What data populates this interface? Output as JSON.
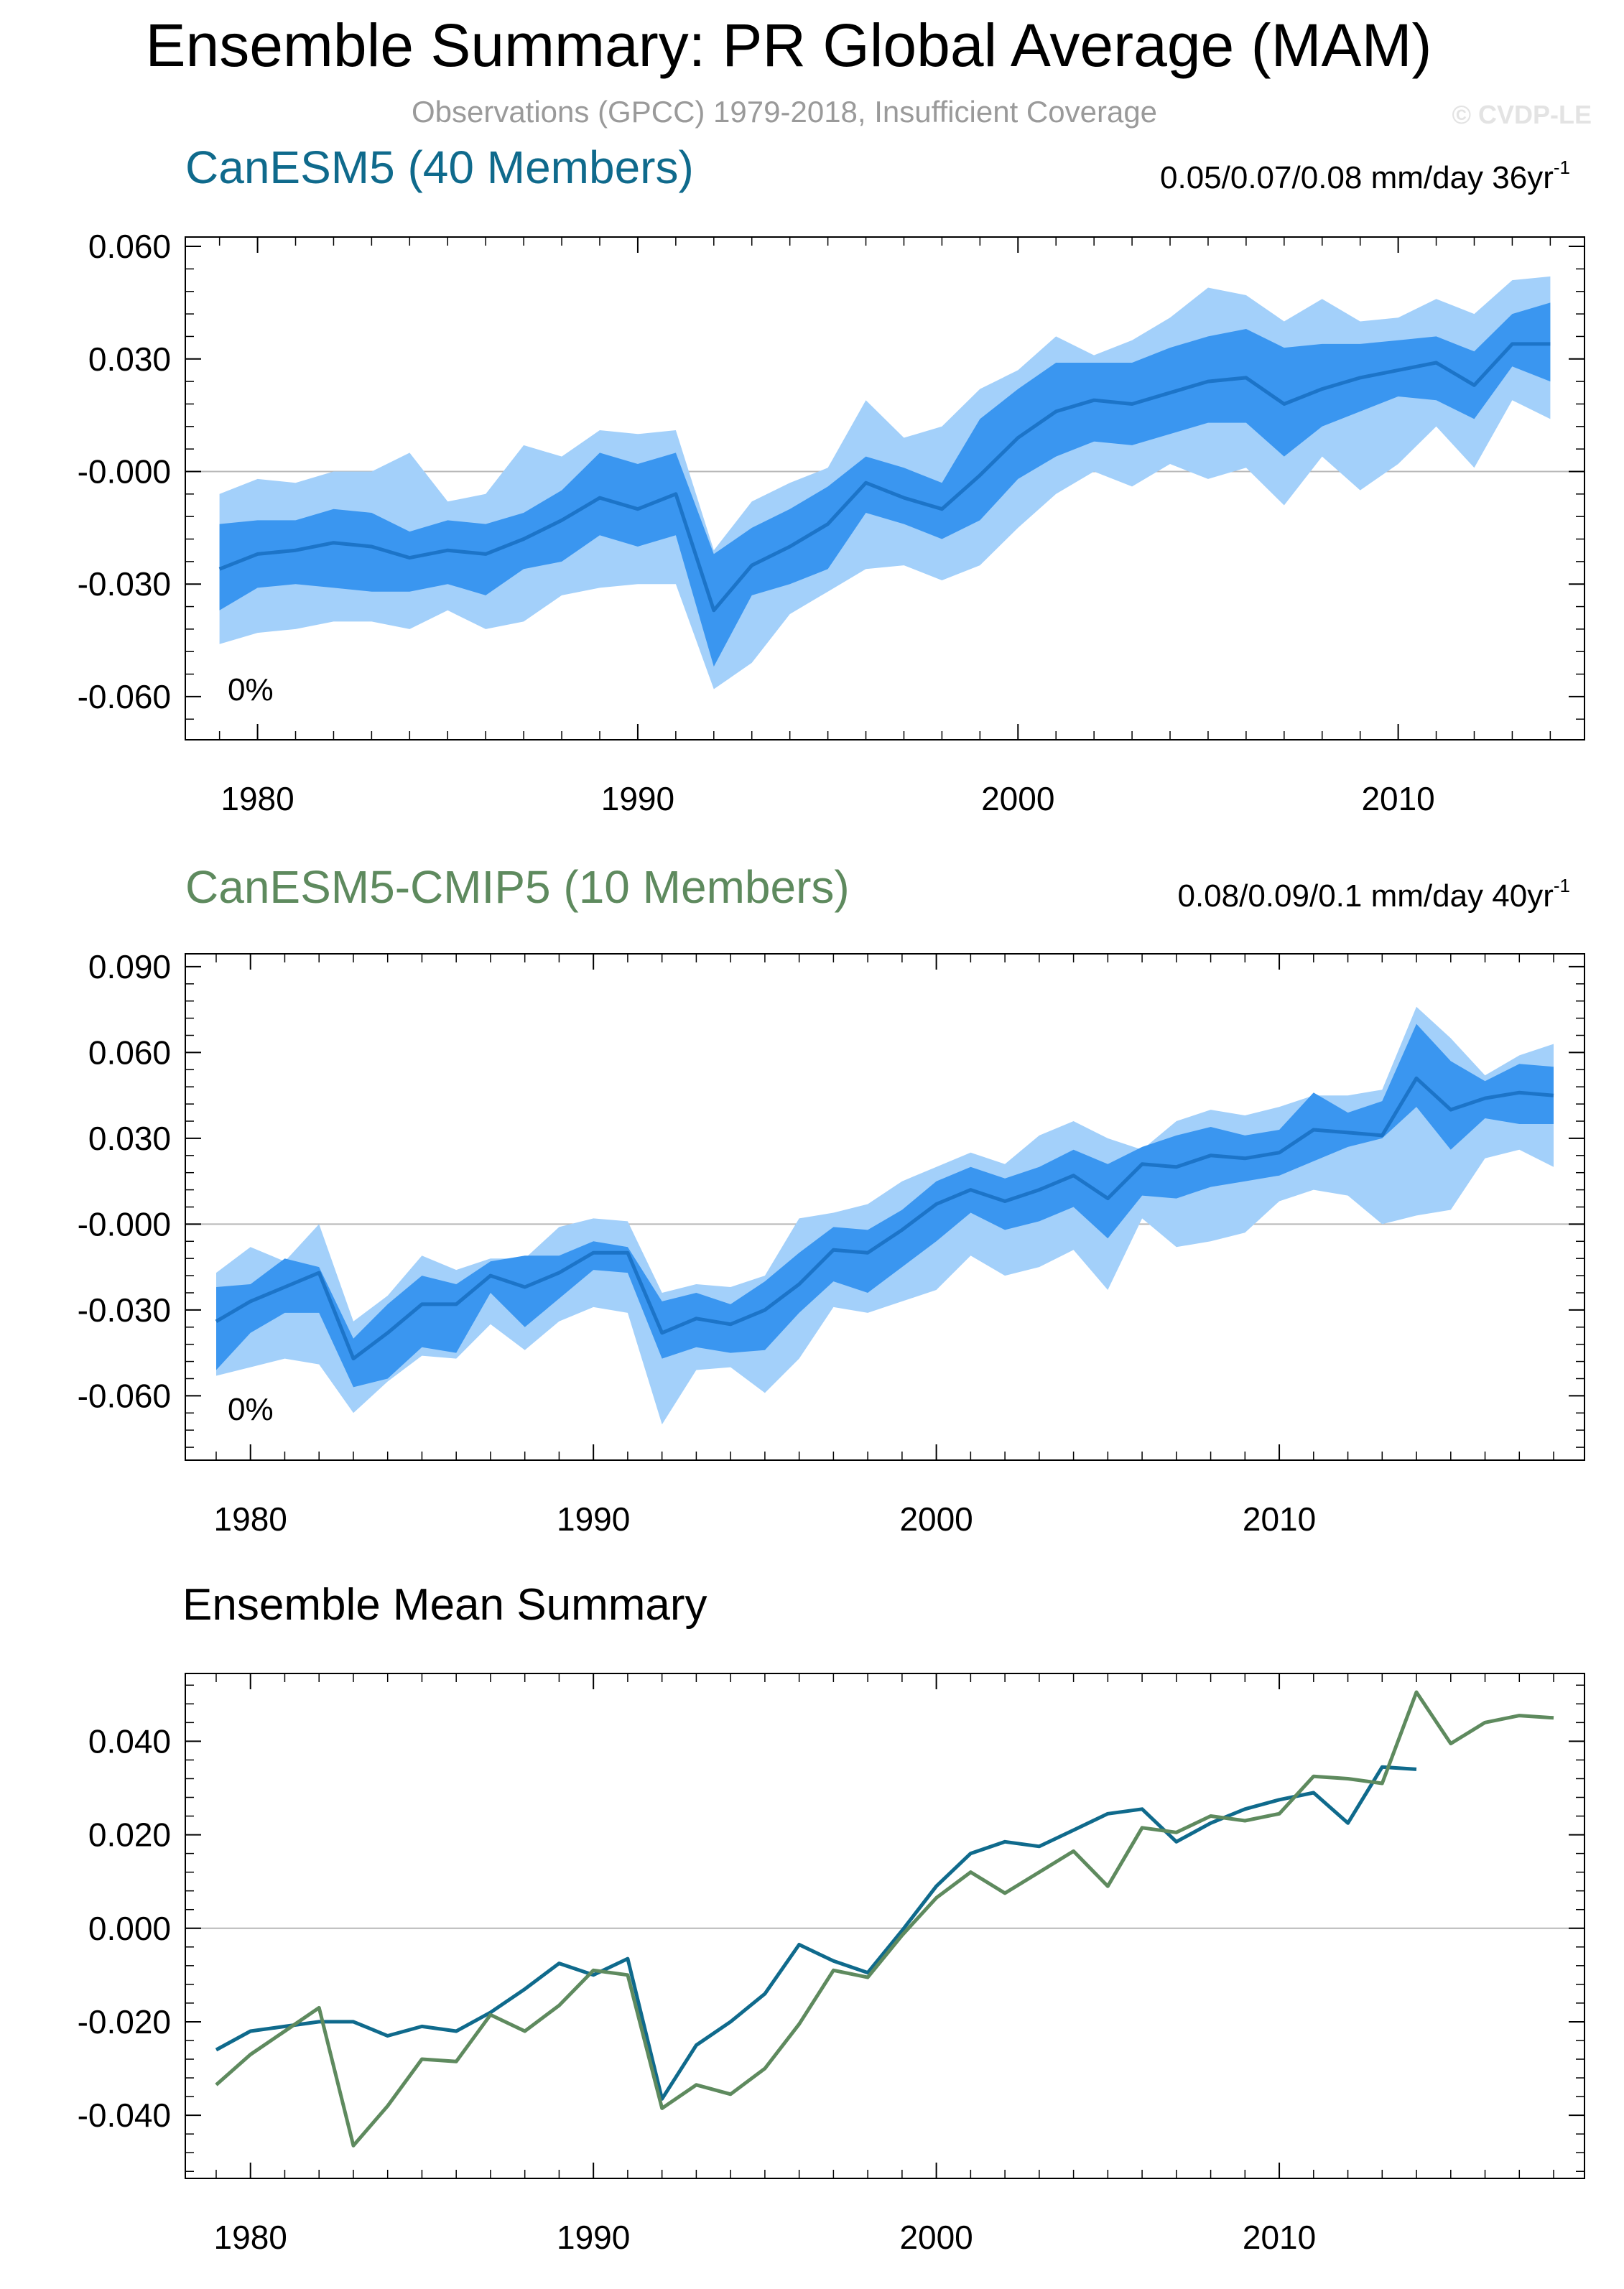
{
  "header": {
    "title": "Ensemble Summary: PR Global Average (MAM)",
    "subtitle": "Observations (GPCC) 1979-2018, Insufficient Coverage",
    "watermark": "© CVDP-LE"
  },
  "colors": {
    "canesm5": "#0f6a8c",
    "cmip5": "#5e8a5e",
    "band_outer": "#a3d0fa",
    "band_inner": "#3a96f0",
    "mean_line": "#1c74c8",
    "zero_line": "#b8b8b8"
  },
  "chart_data": [
    {
      "type": "area",
      "title": "CanESM5 (40 Members)",
      "trend_label": "0.05/0.07/0.08 mm/day 36yr",
      "trend_exp": "-1",
      "percent_label": "0%",
      "xlim": [
        1978.1,
        2014.9
      ],
      "ylim": [
        -0.0715,
        0.0625
      ],
      "yticks": [
        0.06,
        0.03,
        0.0,
        -0.03,
        -0.06
      ],
      "yticklabels": [
        "0.060",
        "0.030",
        "-0.000",
        "-0.030",
        "-0.060"
      ],
      "xticks": [
        1980,
        1990,
        2000,
        2010
      ],
      "xticklabels": [
        "1980",
        "1990",
        "2000",
        "2010"
      ],
      "x": [
        1979,
        1980,
        1981,
        1982,
        1983,
        1984,
        1985,
        1986,
        1987,
        1988,
        1989,
        1990,
        1991,
        1992,
        1993,
        1994,
        1995,
        1996,
        1997,
        1998,
        1999,
        2000,
        2001,
        2002,
        2003,
        2004,
        2005,
        2006,
        2007,
        2008,
        2009,
        2010,
        2011,
        2012,
        2013,
        2014
      ],
      "mean": [
        -0.026,
        -0.022,
        -0.021,
        -0.019,
        -0.02,
        -0.023,
        -0.021,
        -0.022,
        -0.018,
        -0.013,
        -0.007,
        -0.01,
        -0.006,
        -0.037,
        -0.025,
        -0.02,
        -0.014,
        -0.003,
        -0.007,
        -0.01,
        -0.001,
        0.009,
        0.016,
        0.019,
        0.018,
        0.021,
        0.024,
        0.025,
        0.018,
        0.022,
        0.025,
        0.027,
        0.029,
        0.023,
        0.034,
        0.034
      ],
      "inner_upper": [
        -0.014,
        -0.013,
        -0.013,
        -0.01,
        -0.011,
        -0.016,
        -0.013,
        -0.014,
        -0.011,
        -0.005,
        0.005,
        0.002,
        0.005,
        -0.022,
        -0.015,
        -0.01,
        -0.004,
        0.004,
        0.001,
        -0.003,
        0.014,
        0.022,
        0.029,
        0.029,
        0.029,
        0.033,
        0.036,
        0.038,
        0.033,
        0.034,
        0.034,
        0.035,
        0.036,
        0.032,
        0.042,
        0.045
      ],
      "inner_lower": [
        -0.037,
        -0.031,
        -0.03,
        -0.031,
        -0.032,
        -0.032,
        -0.03,
        -0.033,
        -0.026,
        -0.024,
        -0.017,
        -0.02,
        -0.017,
        -0.052,
        -0.033,
        -0.03,
        -0.026,
        -0.011,
        -0.014,
        -0.018,
        -0.013,
        -0.002,
        0.004,
        0.008,
        0.007,
        0.01,
        0.013,
        0.013,
        0.004,
        0.012,
        0.016,
        0.02,
        0.019,
        0.014,
        0.028,
        0.024
      ],
      "outer_upper": [
        -0.006,
        -0.002,
        -0.003,
        0.0,
        0.0,
        0.005,
        -0.008,
        -0.006,
        0.007,
        0.004,
        0.011,
        0.01,
        0.011,
        -0.021,
        -0.008,
        -0.003,
        0.001,
        0.019,
        0.009,
        0.012,
        0.022,
        0.027,
        0.036,
        0.031,
        0.035,
        0.041,
        0.049,
        0.047,
        0.04,
        0.046,
        0.04,
        0.041,
        0.046,
        0.042,
        0.051,
        0.052
      ],
      "outer_lower": [
        -0.046,
        -0.043,
        -0.042,
        -0.04,
        -0.04,
        -0.042,
        -0.037,
        -0.042,
        -0.04,
        -0.033,
        -0.031,
        -0.03,
        -0.03,
        -0.058,
        -0.051,
        -0.038,
        -0.032,
        -0.026,
        -0.025,
        -0.029,
        -0.025,
        -0.015,
        -0.006,
        0.0,
        -0.004,
        0.002,
        -0.002,
        0.001,
        -0.009,
        0.004,
        -0.005,
        0.002,
        0.012,
        0.001,
        0.019,
        0.014
      ]
    },
    {
      "type": "area",
      "title": "CanESM5-CMIP5 (10 Members)",
      "trend_label": "0.08/0.09/0.1 mm/day 40yr",
      "trend_exp": "-1",
      "percent_label": "0%",
      "xlim": [
        1978.1,
        2018.9
      ],
      "ylim": [
        -0.0825,
        0.0945
      ],
      "yticks": [
        0.09,
        0.06,
        0.03,
        0.0,
        -0.03,
        -0.06
      ],
      "yticklabels": [
        "0.090",
        "0.060",
        "0.030",
        "-0.000",
        "-0.030",
        "-0.060"
      ],
      "xticks": [
        1980,
        1990,
        2000,
        2010
      ],
      "xticklabels": [
        "1980",
        "1990",
        "2000",
        "2010"
      ],
      "x": [
        1979,
        1980,
        1981,
        1982,
        1983,
        1984,
        1985,
        1986,
        1987,
        1988,
        1989,
        1990,
        1991,
        1992,
        1993,
        1994,
        1995,
        1996,
        1997,
        1998,
        1999,
        2000,
        2001,
        2002,
        2003,
        2004,
        2005,
        2006,
        2007,
        2008,
        2009,
        2010,
        2011,
        2012,
        2013,
        2014,
        2015,
        2016,
        2017,
        2018
      ],
      "mean": [
        -0.034,
        -0.027,
        -0.022,
        -0.017,
        -0.047,
        -0.038,
        -0.028,
        -0.028,
        -0.018,
        -0.022,
        -0.017,
        -0.01,
        -0.01,
        -0.038,
        -0.033,
        -0.035,
        -0.03,
        -0.021,
        -0.009,
        -0.01,
        -0.002,
        0.007,
        0.012,
        0.008,
        0.012,
        0.017,
        0.009,
        0.021,
        0.02,
        0.024,
        0.023,
        0.025,
        0.033,
        0.032,
        0.031,
        0.051,
        0.04,
        0.044,
        0.046,
        0.045
      ],
      "inner_upper": [
        -0.022,
        -0.021,
        -0.012,
        -0.015,
        -0.04,
        -0.028,
        -0.018,
        -0.021,
        -0.013,
        -0.011,
        -0.011,
        -0.006,
        -0.008,
        -0.027,
        -0.024,
        -0.028,
        -0.02,
        -0.01,
        -0.001,
        -0.002,
        0.005,
        0.015,
        0.02,
        0.016,
        0.02,
        0.026,
        0.021,
        0.027,
        0.031,
        0.034,
        0.031,
        0.033,
        0.046,
        0.039,
        0.043,
        0.07,
        0.057,
        0.05,
        0.056,
        0.055
      ],
      "inner_lower": [
        -0.051,
        -0.038,
        -0.031,
        -0.031,
        -0.057,
        -0.054,
        -0.043,
        -0.045,
        -0.024,
        -0.036,
        -0.026,
        -0.016,
        -0.017,
        -0.047,
        -0.043,
        -0.045,
        -0.044,
        -0.031,
        -0.02,
        -0.024,
        -0.015,
        -0.006,
        0.004,
        -0.002,
        0.001,
        0.006,
        -0.005,
        0.01,
        0.009,
        0.013,
        0.015,
        0.017,
        0.022,
        0.027,
        0.03,
        0.041,
        0.026,
        0.037,
        0.035,
        0.035
      ],
      "outer_upper": [
        -0.017,
        -0.008,
        -0.013,
        0.0,
        -0.034,
        -0.025,
        -0.011,
        -0.016,
        -0.012,
        -0.012,
        -0.001,
        0.002,
        0.001,
        -0.024,
        -0.021,
        -0.022,
        -0.018,
        0.002,
        0.004,
        0.007,
        0.015,
        0.02,
        0.025,
        0.021,
        0.031,
        0.036,
        0.03,
        0.026,
        0.036,
        0.04,
        0.038,
        0.041,
        0.045,
        0.045,
        0.047,
        0.076,
        0.065,
        0.052,
        0.059,
        0.063
      ],
      "outer_lower": [
        -0.053,
        -0.05,
        -0.047,
        -0.049,
        -0.066,
        -0.055,
        -0.046,
        -0.047,
        -0.035,
        -0.044,
        -0.034,
        -0.029,
        -0.031,
        -0.07,
        -0.051,
        -0.05,
        -0.059,
        -0.047,
        -0.029,
        -0.031,
        -0.027,
        -0.023,
        -0.011,
        -0.018,
        -0.015,
        -0.009,
        -0.023,
        0.002,
        -0.008,
        -0.006,
        -0.003,
        0.008,
        0.012,
        0.01,
        0.0,
        0.003,
        0.005,
        0.023,
        0.026,
        0.02
      ]
    },
    {
      "type": "line",
      "title": "Ensemble Mean Summary",
      "xlim": [
        1978.1,
        2018.9
      ],
      "ylim": [
        -0.0535,
        0.0545
      ],
      "yticks": [
        0.04,
        0.02,
        0.0,
        -0.02,
        -0.04
      ],
      "yticklabels": [
        "0.040",
        "0.020",
        "0.000",
        "-0.020",
        "-0.040"
      ],
      "xticks": [
        1980,
        1990,
        2000,
        2010
      ],
      "xticklabels": [
        "1980",
        "1990",
        "2000",
        "2010"
      ],
      "series": [
        {
          "name": "CanESM5",
          "x": [
            1979,
            1980,
            1981,
            1982,
            1983,
            1984,
            1985,
            1986,
            1987,
            1988,
            1989,
            1990,
            1991,
            1992,
            1993,
            1994,
            1995,
            1996,
            1997,
            1998,
            1999,
            2000,
            2001,
            2002,
            2003,
            2004,
            2005,
            2006,
            2007,
            2008,
            2009,
            2010,
            2011,
            2012,
            2013,
            2014
          ],
          "values": [
            -0.026,
            -0.022,
            -0.021,
            -0.02,
            -0.02,
            -0.023,
            -0.021,
            -0.022,
            -0.018,
            -0.013,
            -0.0075,
            -0.01,
            -0.0065,
            -0.0365,
            -0.025,
            -0.02,
            -0.014,
            -0.0035,
            -0.007,
            -0.0095,
            -0.0005,
            0.009,
            0.016,
            0.0185,
            0.0175,
            0.021,
            0.0245,
            0.0255,
            0.0185,
            0.0225,
            0.0255,
            0.0275,
            0.029,
            0.0225,
            0.0345,
            0.034
          ]
        },
        {
          "name": "CanESM5-CMIP5",
          "x": [
            1979,
            1980,
            1981,
            1982,
            1983,
            1984,
            1985,
            1986,
            1987,
            1988,
            1989,
            1990,
            1991,
            1992,
            1993,
            1994,
            1995,
            1996,
            1997,
            1998,
            1999,
            2000,
            2001,
            2002,
            2003,
            2004,
            2005,
            2006,
            2007,
            2008,
            2009,
            2010,
            2011,
            2012,
            2013,
            2014,
            2015,
            2016,
            2017,
            2018
          ],
          "values": [
            -0.0335,
            -0.027,
            -0.022,
            -0.017,
            -0.0465,
            -0.038,
            -0.028,
            -0.0285,
            -0.0185,
            -0.022,
            -0.0165,
            -0.009,
            -0.01,
            -0.0385,
            -0.0335,
            -0.0355,
            -0.03,
            -0.0205,
            -0.009,
            -0.0105,
            -0.0015,
            0.0065,
            0.012,
            0.0075,
            0.012,
            0.0165,
            0.009,
            0.0215,
            0.0205,
            0.024,
            0.023,
            0.0245,
            0.0325,
            0.032,
            0.031,
            0.0505,
            0.0395,
            0.044,
            0.0455,
            0.045
          ]
        }
      ]
    }
  ]
}
